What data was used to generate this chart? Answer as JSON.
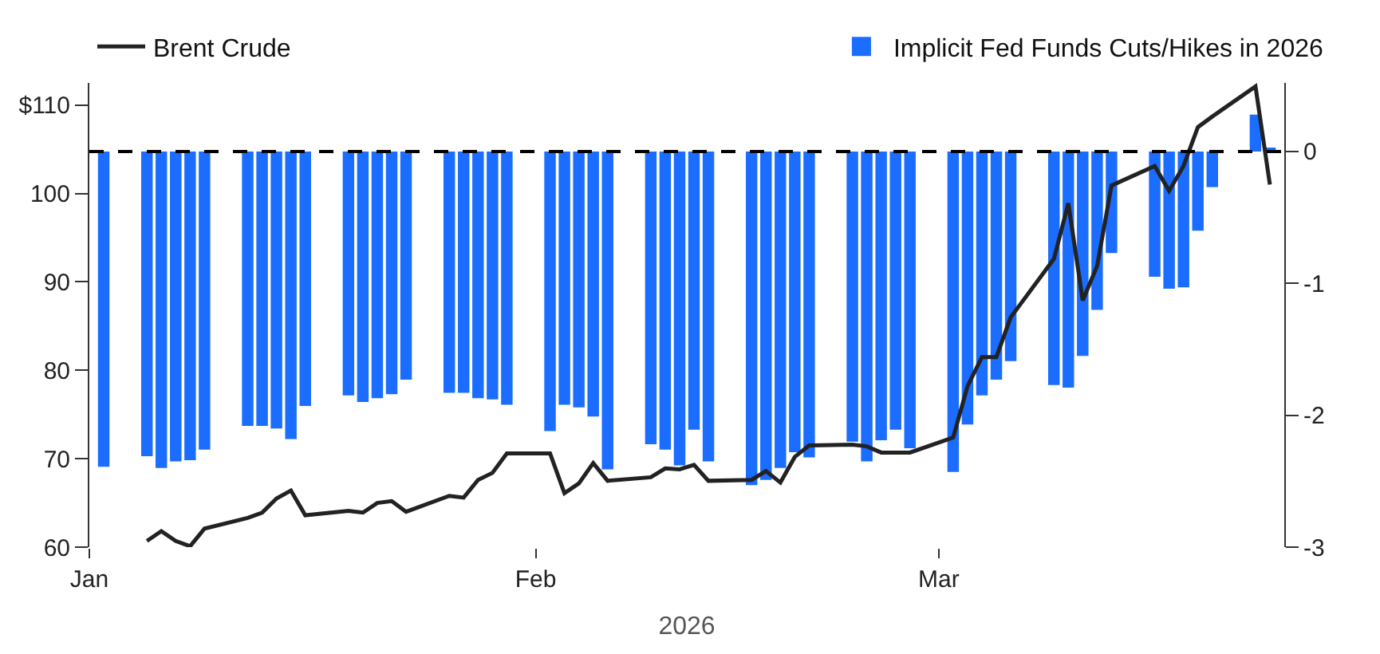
{
  "chart_data": {
    "type": "bar",
    "xlabel": "2026",
    "x": [
      "2026-01-02",
      "2026-01-05",
      "2026-01-06",
      "2026-01-07",
      "2026-01-08",
      "2026-01-09",
      "2026-01-12",
      "2026-01-13",
      "2026-01-14",
      "2026-01-15",
      "2026-01-16",
      "2026-01-19",
      "2026-01-20",
      "2026-01-21",
      "2026-01-22",
      "2026-01-23",
      "2026-01-26",
      "2026-01-27",
      "2026-01-28",
      "2026-01-29",
      "2026-01-30",
      "2026-02-02",
      "2026-02-03",
      "2026-02-04",
      "2026-02-05",
      "2026-02-06",
      "2026-02-09",
      "2026-02-10",
      "2026-02-11",
      "2026-02-12",
      "2026-02-13",
      "2026-02-16",
      "2026-02-17",
      "2026-02-18",
      "2026-02-19",
      "2026-02-20",
      "2026-02-23",
      "2026-02-24",
      "2026-02-25",
      "2026-02-26",
      "2026-02-27",
      "2026-03-02",
      "2026-03-03",
      "2026-03-04",
      "2026-03-05",
      "2026-03-06",
      "2026-03-09",
      "2026-03-10",
      "2026-03-11",
      "2026-03-12",
      "2026-03-13",
      "2026-03-16",
      "2026-03-17",
      "2026-03-18",
      "2026-03-19",
      "2026-03-20",
      "2026-03-23",
      "2026-03-24"
    ],
    "series": [
      {
        "name": "Implicit Fed Funds Cuts/Hikes in 2026",
        "axis": "y2",
        "color": "#1a6dff",
        "values": [
          -2.39,
          -2.31,
          -2.4,
          -2.35,
          -2.34,
          -2.26,
          -2.08,
          -2.08,
          -2.1,
          -2.18,
          -1.93,
          -1.85,
          -1.9,
          -1.87,
          -1.84,
          -1.73,
          -1.83,
          -1.83,
          -1.87,
          -1.88,
          -1.92,
          -2.12,
          -1.92,
          -1.94,
          -2.01,
          -2.41,
          -2.22,
          -2.26,
          -2.38,
          -2.11,
          -2.35,
          -2.53,
          -2.49,
          -2.4,
          -2.28,
          -2.32,
          -2.2,
          -2.35,
          -2.19,
          -2.11,
          -2.25,
          -2.43,
          -2.07,
          -1.85,
          -1.73,
          -1.59,
          -1.77,
          -1.79,
          -1.55,
          -1.2,
          -0.77,
          -0.95,
          -1.04,
          -1.03,
          -0.6,
          -0.27,
          0.28,
          0.03
        ]
      },
      {
        "name": "Brent Crude",
        "type": "line",
        "color": "#222222",
        "values": [
          null,
          60.7,
          61.8,
          60.7,
          60.1,
          62.1,
          63.3,
          63.9,
          65.5,
          66.4,
          63.6,
          64.1,
          63.9,
          65.0,
          65.2,
          64.0,
          65.8,
          65.6,
          67.6,
          68.4,
          70.6,
          70.6,
          66.1,
          67.2,
          69.5,
          67.5,
          67.9,
          68.9,
          68.8,
          69.3,
          67.5,
          67.6,
          68.6,
          67.3,
          70.2,
          71.5,
          71.6,
          71.4,
          70.7,
          70.7,
          70.7,
          72.4,
          78.2,
          81.5,
          81.5,
          86.0,
          92.6,
          98.9,
          87.9,
          91.8,
          100.9,
          103.1,
          100.3,
          103.1,
          107.5,
          108.7,
          112.1,
          101.0
        ]
      }
    ],
    "xlim": [
      "2026-01-01",
      "2026-03-25"
    ],
    "xticks": [
      {
        "value": "2026-01-01",
        "label": "Jan"
      },
      {
        "value": "2026-02-01",
        "label": "Feb"
      },
      {
        "value": "2026-03-01",
        "label": "Mar"
      }
    ],
    "ylim": [
      60,
      112.5
    ],
    "yticks": [
      {
        "value": 60,
        "label": "60"
      },
      {
        "value": 70,
        "label": "70"
      },
      {
        "value": 80,
        "label": "80"
      },
      {
        "value": 90,
        "label": "90"
      },
      {
        "value": 100,
        "label": "100"
      },
      {
        "value": 110,
        "label": "$110"
      }
    ],
    "y2lim": [
      -3,
      0.52
    ],
    "y2ticks": [
      -3,
      -2,
      -1,
      0
    ],
    "ref_lines": [
      {
        "axis": "y2",
        "value": 0,
        "color": "#000000",
        "line_style": "dashed"
      }
    ],
    "legend": "top"
  }
}
